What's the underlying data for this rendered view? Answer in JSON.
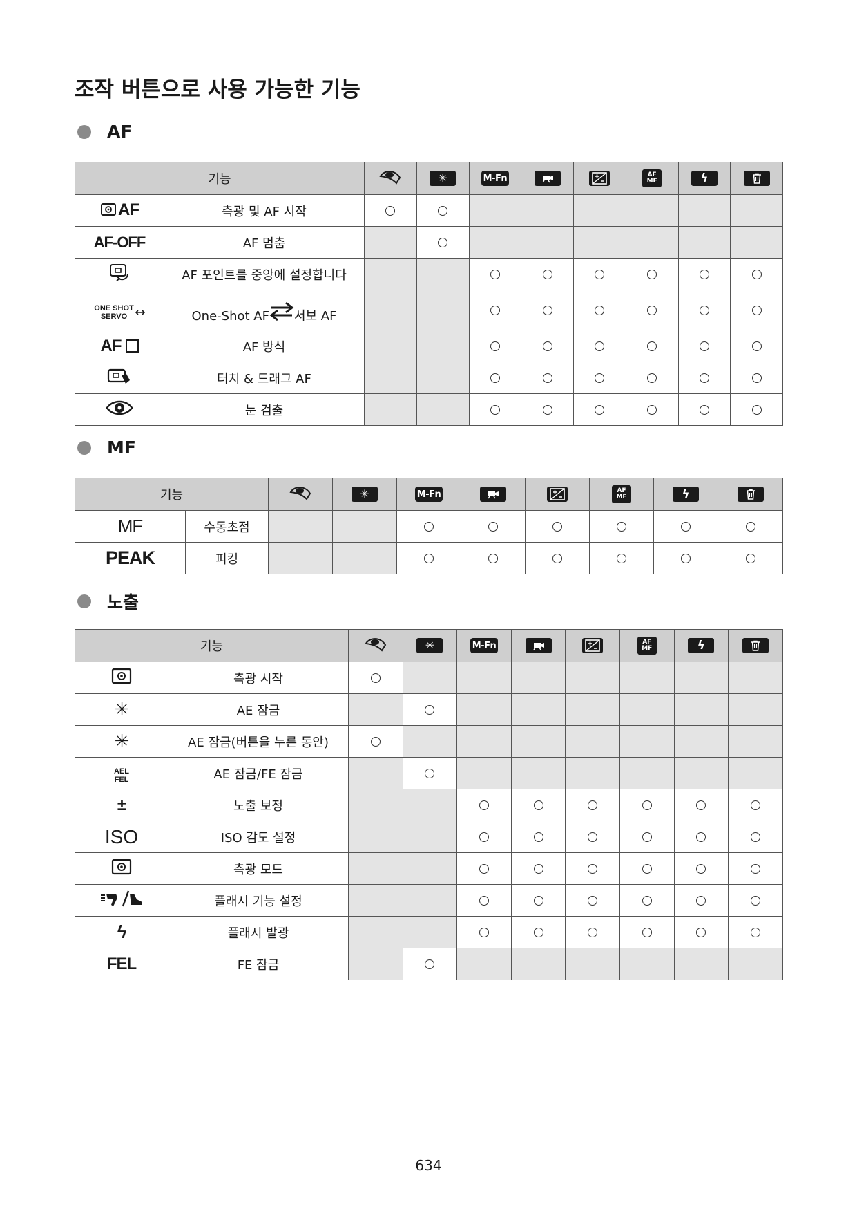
{
  "page_title": "조작 버튼으로 사용 가능한 기능",
  "sections": {
    "af": {
      "heading": "AF"
    },
    "mf": {
      "heading": "MF"
    },
    "exposure": {
      "heading": "노출"
    }
  },
  "header": {
    "function_label": "기능",
    "button_icons": [
      "shutter-half-press-icon",
      "ae-lock-star-icon",
      "m-fn-icon",
      "movie-button-icon",
      "exposure-comp-icon",
      "af-mf-switch-icon",
      "flash-icon",
      "erase-icon"
    ],
    "mfn_text": "M-Fn",
    "afmf_top": "AF",
    "afmf_bottom": "MF",
    "star_glyph": "✳",
    "flash_glyph": "ϟ",
    "trash_glyph": "🗑",
    "exp_glyph": "±"
  },
  "af_table": {
    "rows": [
      {
        "icon": "metering-af-icon",
        "icon_text": "AF",
        "label": "측광 및 AF 시작",
        "cells": [
          "o",
          "o",
          "-",
          "-",
          "-",
          "-",
          "-",
          "-"
        ]
      },
      {
        "icon": "af-off-icon",
        "icon_text": "AF-OFF",
        "label": "AF 멈춤",
        "cells": [
          "-",
          "o",
          "-",
          "-",
          "-",
          "-",
          "-",
          "-"
        ]
      },
      {
        "icon": "af-point-center-icon",
        "label": "AF 포인트를 중앙에 설정합니다",
        "cells": [
          "-",
          "-",
          "o",
          "o",
          "o",
          "o",
          "o",
          "o"
        ]
      },
      {
        "icon": "one-shot-servo-icon",
        "icon_text_1": "ONE SHOT",
        "icon_text_2": "SERVO",
        "label_a": "One-Shot AF",
        "label_b": "서보 AF",
        "cells": [
          "-",
          "-",
          "o",
          "o",
          "o",
          "o",
          "o",
          "o"
        ]
      },
      {
        "icon": "af-method-icon",
        "icon_text": "AF",
        "label": "AF 방식",
        "cells": [
          "-",
          "-",
          "o",
          "o",
          "o",
          "o",
          "o",
          "o"
        ]
      },
      {
        "icon": "touch-drag-af-icon",
        "label": "터치 & 드래그 AF",
        "cells": [
          "-",
          "-",
          "o",
          "o",
          "o",
          "o",
          "o",
          "o"
        ]
      },
      {
        "icon": "eye-detection-icon",
        "label": "눈 검출",
        "cells": [
          "-",
          "-",
          "o",
          "o",
          "o",
          "o",
          "o",
          "o"
        ]
      }
    ]
  },
  "mf_table": {
    "rows": [
      {
        "icon": "mf-icon",
        "icon_text": "MF",
        "label": "수동초점",
        "cells": [
          "-",
          "-",
          "o",
          "o",
          "o",
          "o",
          "o",
          "o"
        ]
      },
      {
        "icon": "peak-icon",
        "icon_text": "PEAK",
        "label": "피킹",
        "cells": [
          "-",
          "-",
          "o",
          "o",
          "o",
          "o",
          "o",
          "o"
        ]
      }
    ]
  },
  "exposure_table": {
    "rows": [
      {
        "icon": "metering-icon",
        "label": "측광 시작",
        "cells": [
          "o",
          "-",
          "-",
          "-",
          "-",
          "-",
          "-",
          "-"
        ]
      },
      {
        "icon": "ae-lock-icon",
        "icon_text": "✳",
        "label": "AE 잠금",
        "cells": [
          "-",
          "o",
          "-",
          "-",
          "-",
          "-",
          "-",
          "-"
        ]
      },
      {
        "icon": "ae-lock-hold-icon",
        "icon_text": "✳",
        "label": "AE 잠금(버튼을 누른 동안)",
        "cells": [
          "o",
          "-",
          "-",
          "-",
          "-",
          "-",
          "-",
          "-"
        ]
      },
      {
        "icon": "ael-fel-icon",
        "icon_text_1": "AEL",
        "icon_text_2": "FEL",
        "label": "AE 잠금/FE 잠금",
        "cells": [
          "-",
          "o",
          "-",
          "-",
          "-",
          "-",
          "-",
          "-"
        ]
      },
      {
        "icon": "exposure-compensation-icon",
        "icon_text": "±",
        "label": "노출 보정",
        "cells": [
          "-",
          "-",
          "o",
          "o",
          "o",
          "o",
          "o",
          "o"
        ]
      },
      {
        "icon": "iso-icon",
        "icon_text": "ISO",
        "label": "ISO 감도 설정",
        "cells": [
          "-",
          "-",
          "o",
          "o",
          "o",
          "o",
          "o",
          "o"
        ]
      },
      {
        "icon": "metering-mode-icon",
        "label": "측광 모드",
        "cells": [
          "-",
          "-",
          "o",
          "o",
          "o",
          "o",
          "o",
          "o"
        ]
      },
      {
        "icon": "flash-settings-icon",
        "label": "플래시 기능 설정",
        "cells": [
          "-",
          "-",
          "o",
          "o",
          "o",
          "o",
          "o",
          "o"
        ]
      },
      {
        "icon": "flash-fire-icon",
        "icon_text": "ϟ",
        "label": "플래시 발광",
        "cells": [
          "-",
          "-",
          "o",
          "o",
          "o",
          "o",
          "o",
          "o"
        ]
      },
      {
        "icon": "fel-icon",
        "icon_text": "FEL",
        "label": "FE 잠금",
        "cells": [
          "-",
          "o",
          "-",
          "-",
          "-",
          "-",
          "-",
          "-"
        ]
      }
    ]
  },
  "page_number": "634"
}
